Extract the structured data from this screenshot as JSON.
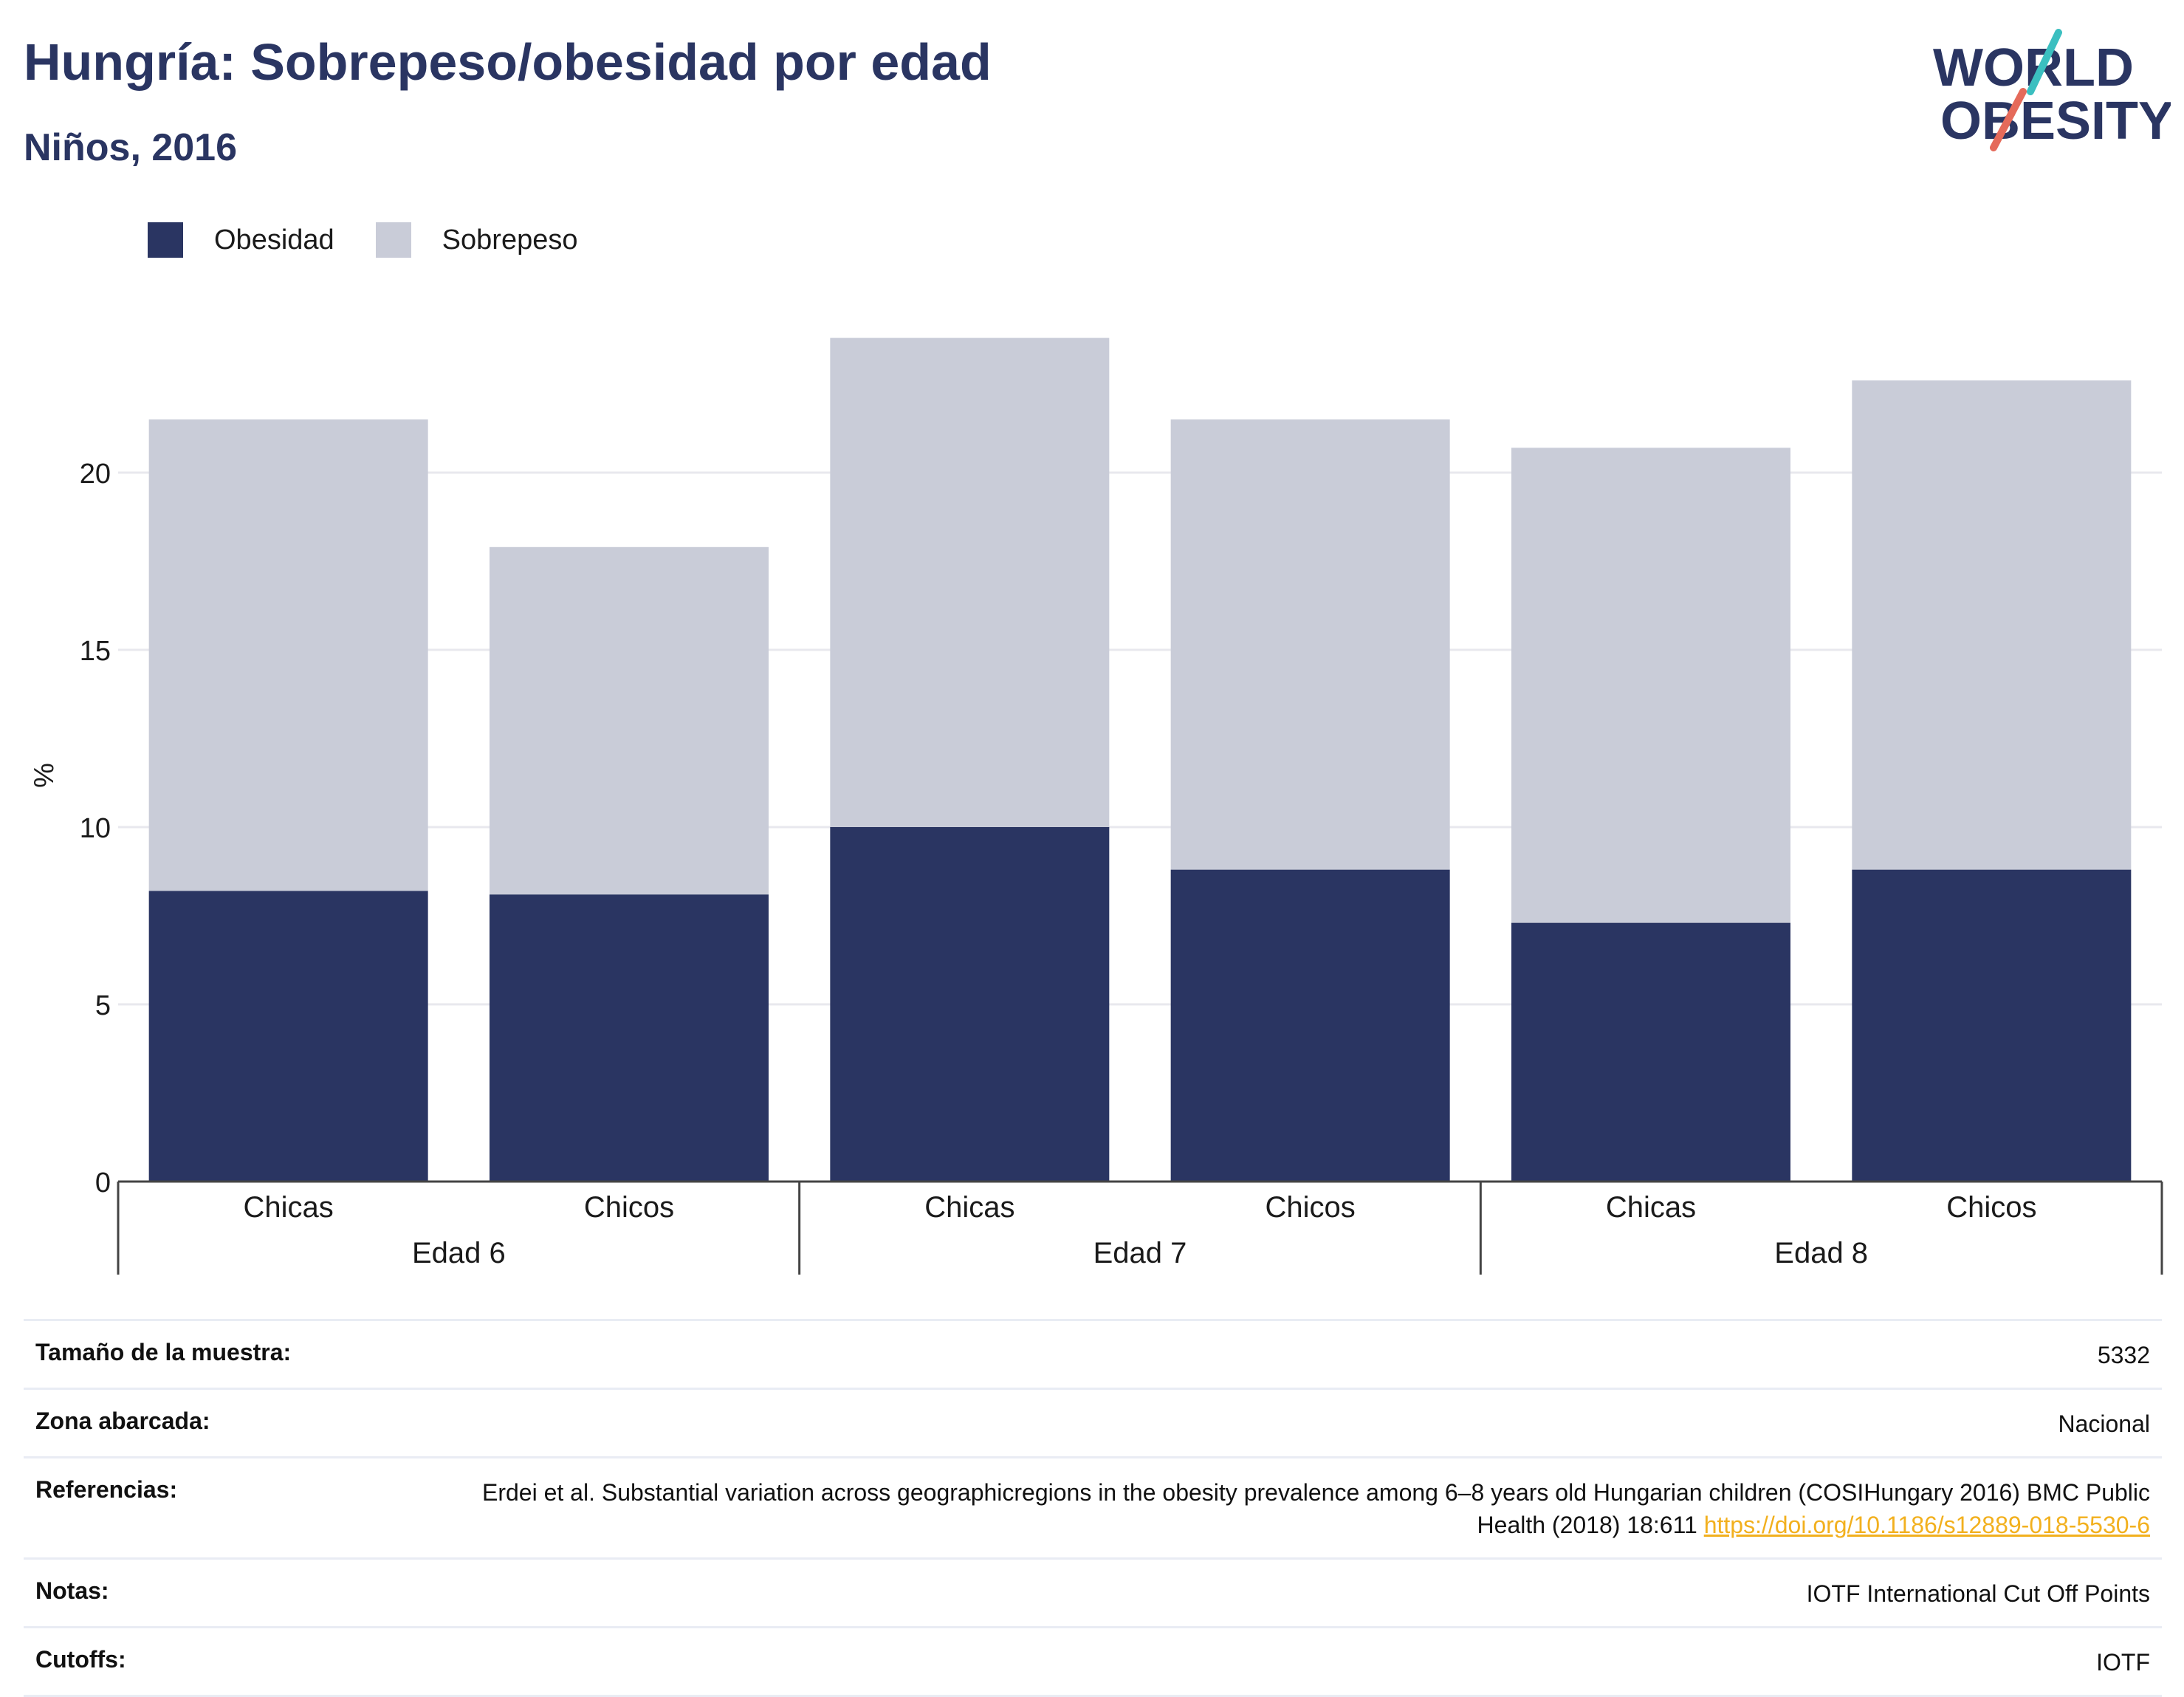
{
  "title": "Hungría: Sobrepeso/obesidad por edad",
  "subtitle": "Niños, 2016",
  "logo": {
    "line1": "WORLD",
    "line2": "OBESITY"
  },
  "colors": {
    "obesity": "#2a3562",
    "overweight": "#c9ccd8",
    "title": "#2a3562",
    "link": "#f2b01e",
    "logo_teal": "#3bbfc0",
    "logo_coral": "#e56a5a"
  },
  "legend": [
    {
      "label": "Obesidad",
      "color": "#2a3562"
    },
    {
      "label": "Sobrepeso",
      "color": "#c9ccd8"
    }
  ],
  "chart_data": {
    "type": "bar",
    "stacked": true,
    "ylabel": "%",
    "ylim": [
      0,
      25
    ],
    "yticks": [
      0,
      5,
      10,
      15,
      20
    ],
    "grid": true,
    "legend_position": "top-left",
    "groups": [
      "Edad 6",
      "Edad 7",
      "Edad 8"
    ],
    "categories": [
      "Chicas",
      "Chicos",
      "Chicas",
      "Chicos",
      "Chicas",
      "Chicos"
    ],
    "category_groups": [
      "Edad 6",
      "Edad 6",
      "Edad 7",
      "Edad 7",
      "Edad 8",
      "Edad 8"
    ],
    "series": [
      {
        "name": "Obesidad",
        "values": [
          8.2,
          8.1,
          10.0,
          8.8,
          7.3,
          8.8
        ]
      },
      {
        "name": "Sobrepeso",
        "values": [
          13.3,
          9.8,
          13.8,
          12.7,
          13.4,
          13.8
        ]
      }
    ]
  },
  "info_table": [
    {
      "label": "Tamaño de la muestra:",
      "value": "5332"
    },
    {
      "label": "Zona abarcada:",
      "value": "Nacional"
    },
    {
      "label": "Referencias:",
      "value": "Erdei et al. Substantial variation across geographicregions in the obesity prevalence among 6–8 years old Hungarian children (COSIHungary 2016) BMC Public Health (2018) 18:611",
      "link": "https://doi.org/10.1186/s12889-018-5530-6"
    },
    {
      "label": "Notas:",
      "value": "IOTF International Cut Off Points"
    },
    {
      "label": "Cutoffs:",
      "value": "IOTF"
    }
  ]
}
